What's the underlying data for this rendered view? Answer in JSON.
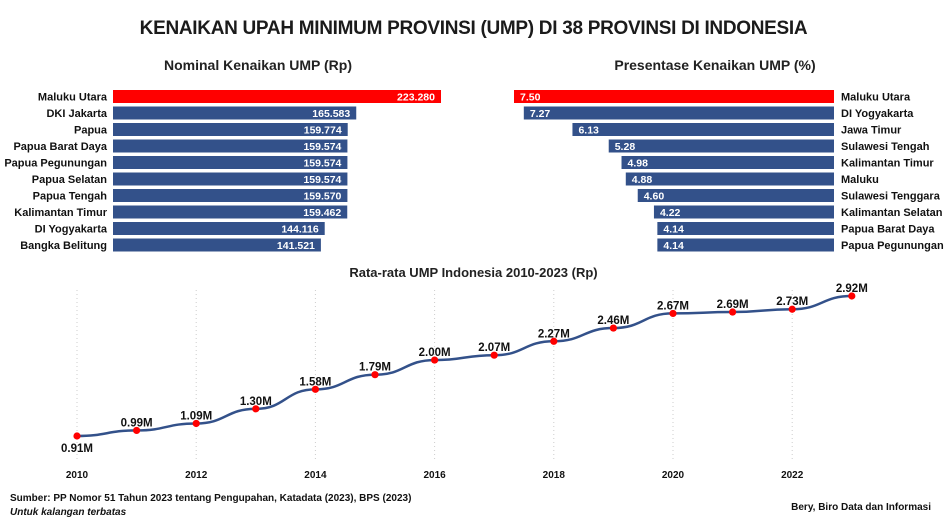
{
  "title": "KENAIKAN UPAH MINIMUM PROVINSI (UMP) DI 38 PROVINSI DI INDONESIA",
  "colors": {
    "highlight": "#ff0000",
    "bar": "#33518a",
    "line": "#33518a",
    "marker": "#ff0000"
  },
  "footer": {
    "source": "Sumber: PP Nomor 51 Tahun 2023 tentang Pengupahan, Katadata (2023), BPS (2023)",
    "note": "Untuk kalangan terbatas",
    "credit": "Bery, Biro Data dan Informasi"
  },
  "chart_data": [
    {
      "type": "bar",
      "orientation": "horizontal",
      "title": "Nominal Kenaikan UMP (Rp)",
      "categories": [
        "Maluku Utara",
        "DKI Jakarta",
        "Papua",
        "Papua Barat Daya",
        "Papua Pegunungan",
        "Papua Selatan",
        "Papua Tengah",
        "Kalimantan Timur",
        "DI Yogyakarta",
        "Bangka Belitung"
      ],
      "values": [
        223280,
        165583,
        159774,
        159574,
        159574,
        159574,
        159570,
        159462,
        144116,
        141521
      ],
      "value_labels": [
        "223.280",
        "165.583",
        "159.774",
        "159.574",
        "159.574",
        "159.574",
        "159.570",
        "159.462",
        "144.116",
        "141.521"
      ],
      "highlight_index": 0,
      "xlim": [
        0,
        223280
      ],
      "grid": false,
      "legend": "none"
    },
    {
      "type": "bar",
      "orientation": "horizontal",
      "direction": "right-to-left",
      "title": "Presentase Kenaikan UMP (%)",
      "categories": [
        "Maluku Utara",
        "DI Yogyakarta",
        "Jawa Timur",
        "Sulawesi Tengah",
        "Kalimantan Timur",
        "Maluku",
        "Sulawesi Tenggara",
        "Kalimantan Selatan",
        "Papua Barat Daya",
        "Papua Pegunungan"
      ],
      "values": [
        7.5,
        7.27,
        6.13,
        5.28,
        4.98,
        4.88,
        4.6,
        4.22,
        4.14,
        4.14
      ],
      "value_labels": [
        "7.50",
        "7.27",
        "6.13",
        "5.28",
        "4.98",
        "4.88",
        "4.60",
        "4.22",
        "4.14",
        "4.14"
      ],
      "highlight_index": 0,
      "xlim": [
        0,
        7.5
      ],
      "grid": false,
      "legend": "none"
    },
    {
      "type": "line",
      "title": "Rata-rata UMP Indonesia 2010-2023 (Rp)",
      "x": [
        2010,
        2011,
        2012,
        2013,
        2014,
        2015,
        2016,
        2017,
        2018,
        2019,
        2020,
        2021,
        2022,
        2023
      ],
      "values": [
        0.91,
        0.99,
        1.09,
        1.3,
        1.58,
        1.79,
        2.0,
        2.07,
        2.27,
        2.46,
        2.67,
        2.69,
        2.73,
        2.92
      ],
      "value_labels": [
        "0.91M",
        "0.99M",
        "1.09M",
        "1.30M",
        "1.58M",
        "1.79M",
        "2.00M",
        "2.07M",
        "2.27M",
        "2.46M",
        "2.67M",
        "2.69M",
        "2.73M",
        "2.92M"
      ],
      "unit": "million Rp",
      "x_ticks": [
        "2010",
        "2012",
        "2014",
        "2016",
        "2018",
        "2020",
        "2022"
      ],
      "xlim": [
        2010,
        2023
      ],
      "xlabel": "",
      "ylabel": "",
      "grid": "vertical dotted",
      "legend": "none"
    }
  ]
}
